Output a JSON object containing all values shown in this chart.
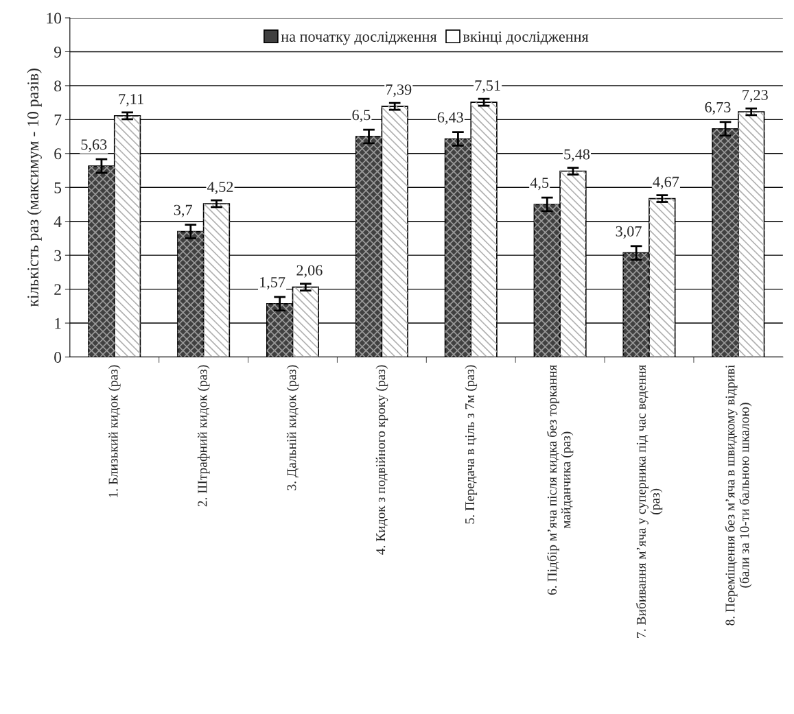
{
  "chart_data": {
    "type": "bar",
    "ylabel": "кількість раз (максимум - 10 разів)",
    "categories": [
      "1. Близький кидок (раз)",
      "2. Штрафний кидок (раз)",
      "3. Дальній кидок (раз)",
      "4. Кидок з подвійного кроку (раз)",
      "5. Передача в ціль з 7м (раз)",
      "6. Підбір м’яча після кидка без торкання\nмайданчика (раз)",
      "7. Вибивання м’яча у суперника під час ведення\n(раз)",
      "8. Переміщення без м’яча в швидкому відриві\n(бали за 10-ти бальною шкалою)"
    ],
    "series": [
      {
        "name": "на початку дослідження",
        "color": "#404040",
        "values": [
          5.63,
          3.7,
          1.57,
          6.5,
          6.43,
          4.5,
          3.07,
          6.73
        ],
        "errors": [
          0.2,
          0.2,
          0.2,
          0.2,
          0.2,
          0.2,
          0.2,
          0.2
        ],
        "value_labels": [
          "5,63",
          "3,7",
          "1,57",
          "6,5",
          "6,43",
          "4,5",
          "3,07",
          "6,73"
        ]
      },
      {
        "name": "вкінці дослідження",
        "color": "#ffffff",
        "values": [
          7.11,
          4.52,
          2.06,
          7.39,
          7.51,
          5.48,
          4.67,
          7.23
        ],
        "errors": [
          0.1,
          0.1,
          0.1,
          0.1,
          0.1,
          0.1,
          0.1,
          0.1
        ],
        "value_labels": [
          "7,11",
          "4,52",
          "2,06",
          "7,39",
          "7,51",
          "5,48",
          "4,67",
          "7,23"
        ]
      }
    ],
    "ylim": [
      0,
      10
    ],
    "yticks": [
      0,
      1,
      2,
      3,
      4,
      5,
      6,
      7,
      8,
      9,
      10
    ],
    "grid": "y",
    "legend": "top"
  }
}
